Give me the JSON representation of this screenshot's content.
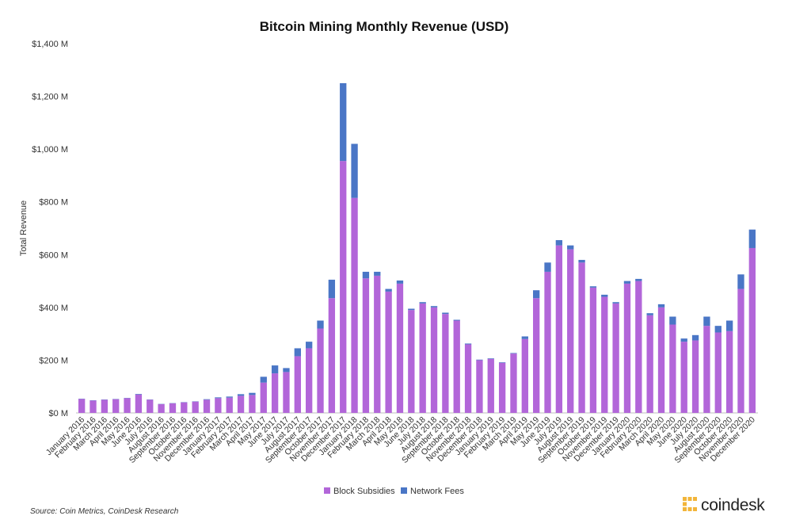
{
  "colors": {
    "block_subsidies": "#b266d9",
    "network_fees": "#4a76c6",
    "logo": "#f2b53a"
  },
  "source": "Source: Coin Metrics, CoinDesk Research",
  "logo": {
    "text": "coindesk",
    "icon": "coindesk-logo-icon"
  },
  "chart_data": {
    "type": "bar",
    "stacked": true,
    "title": "Bitcoin Mining Monthly Revenue (USD)",
    "ylabel": "Total Revenue",
    "xlabel": "",
    "ylim": [
      0,
      1400
    ],
    "yticks": [
      0,
      200,
      400,
      600,
      800,
      1000,
      1200,
      1400
    ],
    "ytick_labels": [
      "$0 M",
      "$200 M",
      "$400 M",
      "$600 M",
      "$800 M",
      "$1,000 M",
      "$1,200 M",
      "$1,400 M"
    ],
    "grid": false,
    "legend": "bottom",
    "categories": [
      "January 2016",
      "February 2016",
      "March 2016",
      "April 2016",
      "May 2016",
      "June 2016",
      "July 2016",
      "August 2016",
      "September 2016",
      "October 2016",
      "November 2016",
      "December 2016",
      "January 2017",
      "February 2017",
      "March 2017",
      "April 2017",
      "May 2017",
      "June 2017",
      "July 2017",
      "August 2017",
      "September 2017",
      "October 2017",
      "November 2017",
      "December 2017",
      "January 2018",
      "February 2018",
      "March 2018",
      "April 2018",
      "May 2018",
      "June 2018",
      "July 2018",
      "August 2018",
      "September 2018",
      "October 2018",
      "November 2018",
      "December 2018",
      "January 2019",
      "February 2019",
      "March 2019",
      "April 2019",
      "May 2019",
      "June 2019",
      "July 2019",
      "August 2019",
      "September 2019",
      "October 2019",
      "November 2019",
      "December 2019",
      "January 2020",
      "February 2020",
      "March 2020",
      "April 2020",
      "May 2020",
      "June 2020",
      "July 2020",
      "August 2020",
      "September 2020",
      "October 2020",
      "November 2020",
      "December 2020"
    ],
    "series": [
      {
        "name": "Block Subsidies",
        "values": [
          53,
          47,
          50,
          52,
          56,
          70,
          50,
          33,
          36,
          40,
          43,
          50,
          56,
          58,
          65,
          68,
          115,
          150,
          155,
          215,
          245,
          320,
          435,
          955,
          815,
          510,
          520,
          460,
          490,
          390,
          415,
          400,
          375,
          350,
          260,
          200,
          205,
          190,
          225,
          280,
          435,
          535,
          635,
          620,
          570,
          475,
          440,
          415,
          490,
          500,
          370,
          400,
          335,
          270,
          275,
          330,
          305,
          310,
          470,
          625
        ]
      },
      {
        "name": "Network Fees",
        "values": [
          1,
          1,
          1,
          1,
          1,
          2,
          1,
          1,
          1,
          1,
          1,
          2,
          3,
          4,
          6,
          8,
          22,
          30,
          15,
          30,
          25,
          30,
          70,
          295,
          205,
          25,
          15,
          10,
          12,
          5,
          5,
          5,
          5,
          3,
          3,
          2,
          2,
          2,
          2,
          10,
          30,
          35,
          20,
          15,
          10,
          5,
          8,
          5,
          10,
          8,
          8,
          12,
          30,
          12,
          20,
          35,
          25,
          40,
          55,
          70
        ]
      }
    ]
  }
}
